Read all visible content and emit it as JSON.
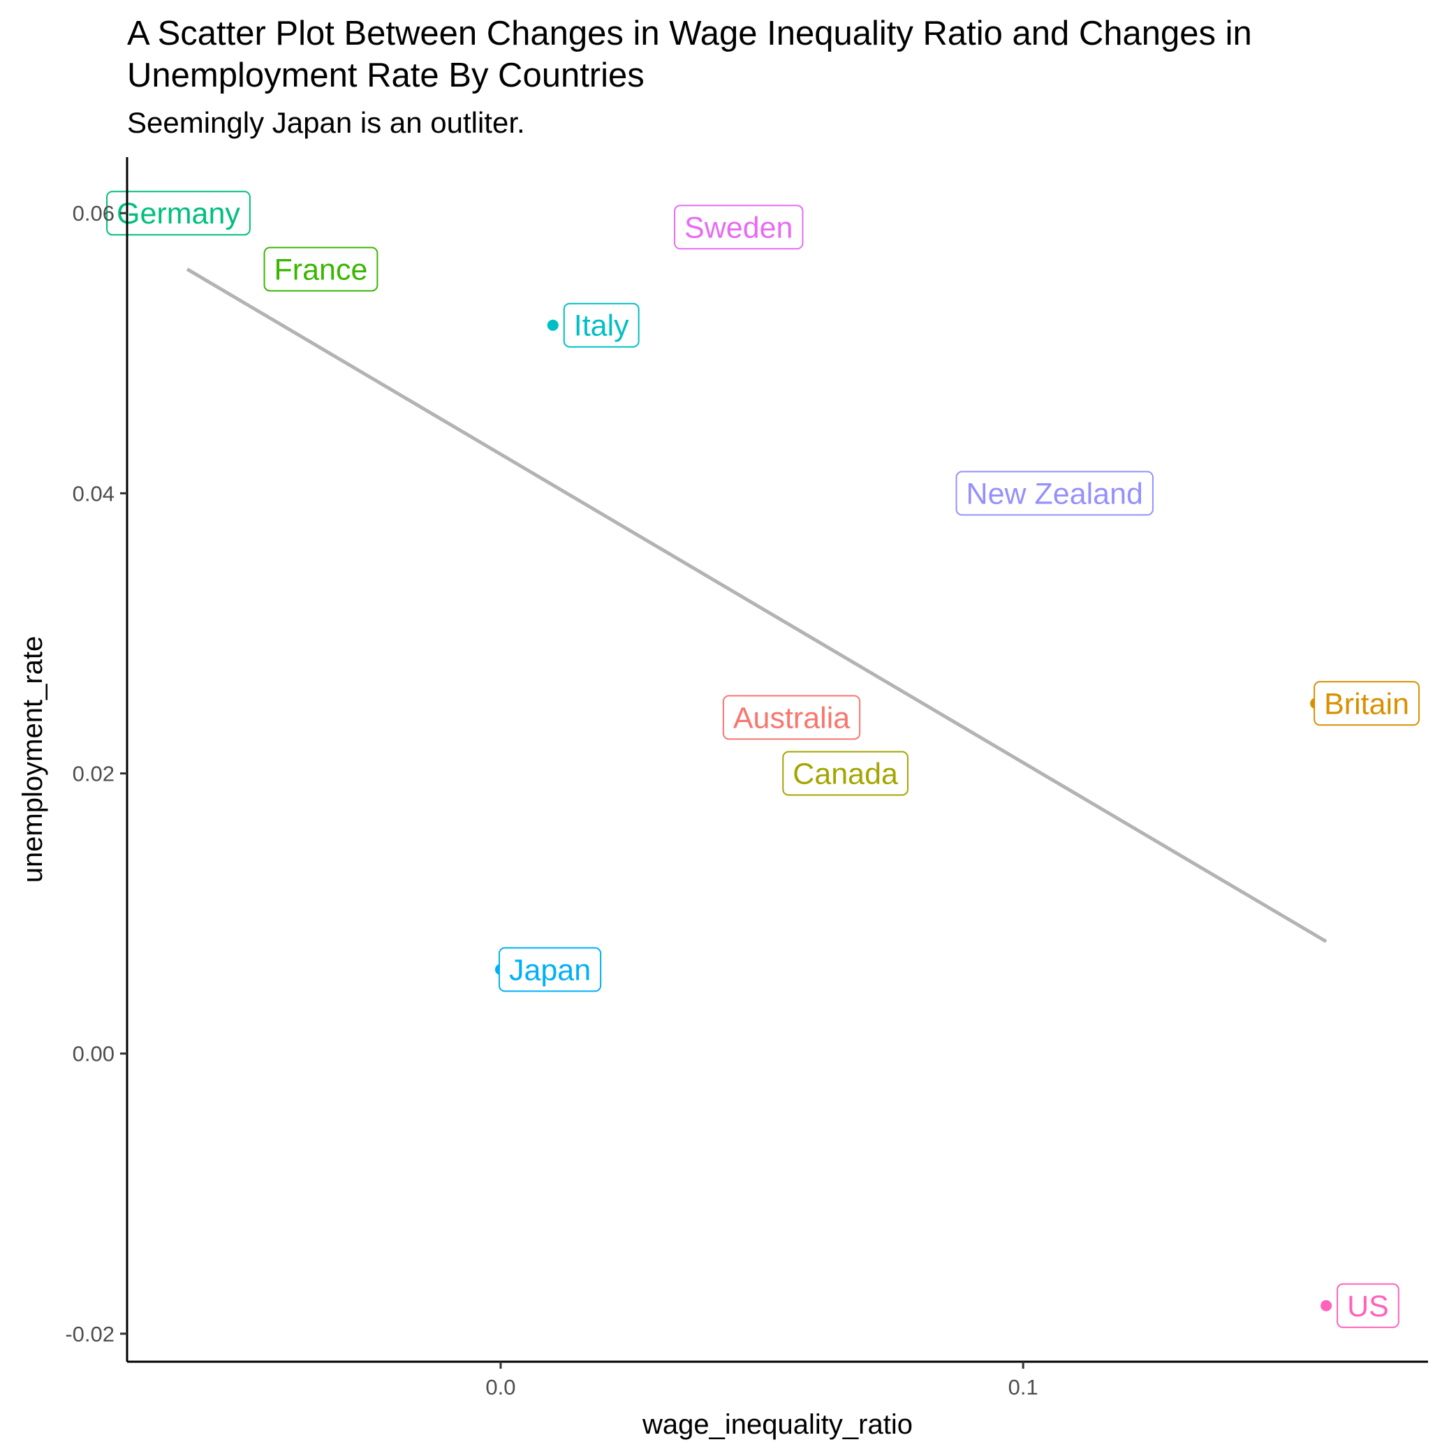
{
  "chart_data": {
    "type": "scatter",
    "title": "A Scatter Plot Between Changes in Wage Inequality Ratio and Changes in Unemployment Rate By Countries",
    "subtitle": "Seemingly Japan is an outliter.",
    "xlabel": "wage_inequality_ratio",
    "ylabel": "unemployment_rate",
    "xlim": [
      -0.0715,
      0.1775
    ],
    "ylim": [
      -0.022,
      0.064
    ],
    "x_ticks": [
      0.0,
      0.1
    ],
    "x_tick_labels": [
      "0.0",
      "0.1"
    ],
    "y_ticks": [
      -0.02,
      0.0,
      0.02,
      0.04,
      0.06
    ],
    "y_tick_labels": [
      "-0.02",
      "0.00",
      "0.02",
      "0.04",
      "0.06"
    ],
    "grid": false,
    "legend": "none",
    "points": [
      {
        "label": "Germany",
        "x": -0.06,
        "y": 0.06,
        "color": "#00BF7D"
      },
      {
        "label": "France",
        "x": -0.032,
        "y": 0.056,
        "color": "#39B600"
      },
      {
        "label": "Italy",
        "x": 0.01,
        "y": 0.052,
        "color": "#00BFC4"
      },
      {
        "label": "Sweden",
        "x": 0.05,
        "y": 0.059,
        "color": "#E76BF3"
      },
      {
        "label": "New Zealand",
        "x": 0.105,
        "y": 0.04,
        "color": "#9590FF"
      },
      {
        "label": "Australia",
        "x": 0.06,
        "y": 0.024,
        "color": "#F8766D"
      },
      {
        "label": "Canada",
        "x": 0.065,
        "y": 0.02,
        "color": "#A3A500"
      },
      {
        "label": "Britain",
        "x": 0.156,
        "y": 0.025,
        "color": "#D89000"
      },
      {
        "label": "Japan",
        "x": 0.0,
        "y": 0.006,
        "color": "#00B0F6"
      },
      {
        "label": "US",
        "x": 0.158,
        "y": -0.018,
        "color": "#FF62BC"
      }
    ],
    "trend_line": {
      "x": [
        -0.06,
        0.158
      ],
      "y": [
        0.056,
        0.008
      ],
      "color": "#b3b3b3"
    }
  }
}
